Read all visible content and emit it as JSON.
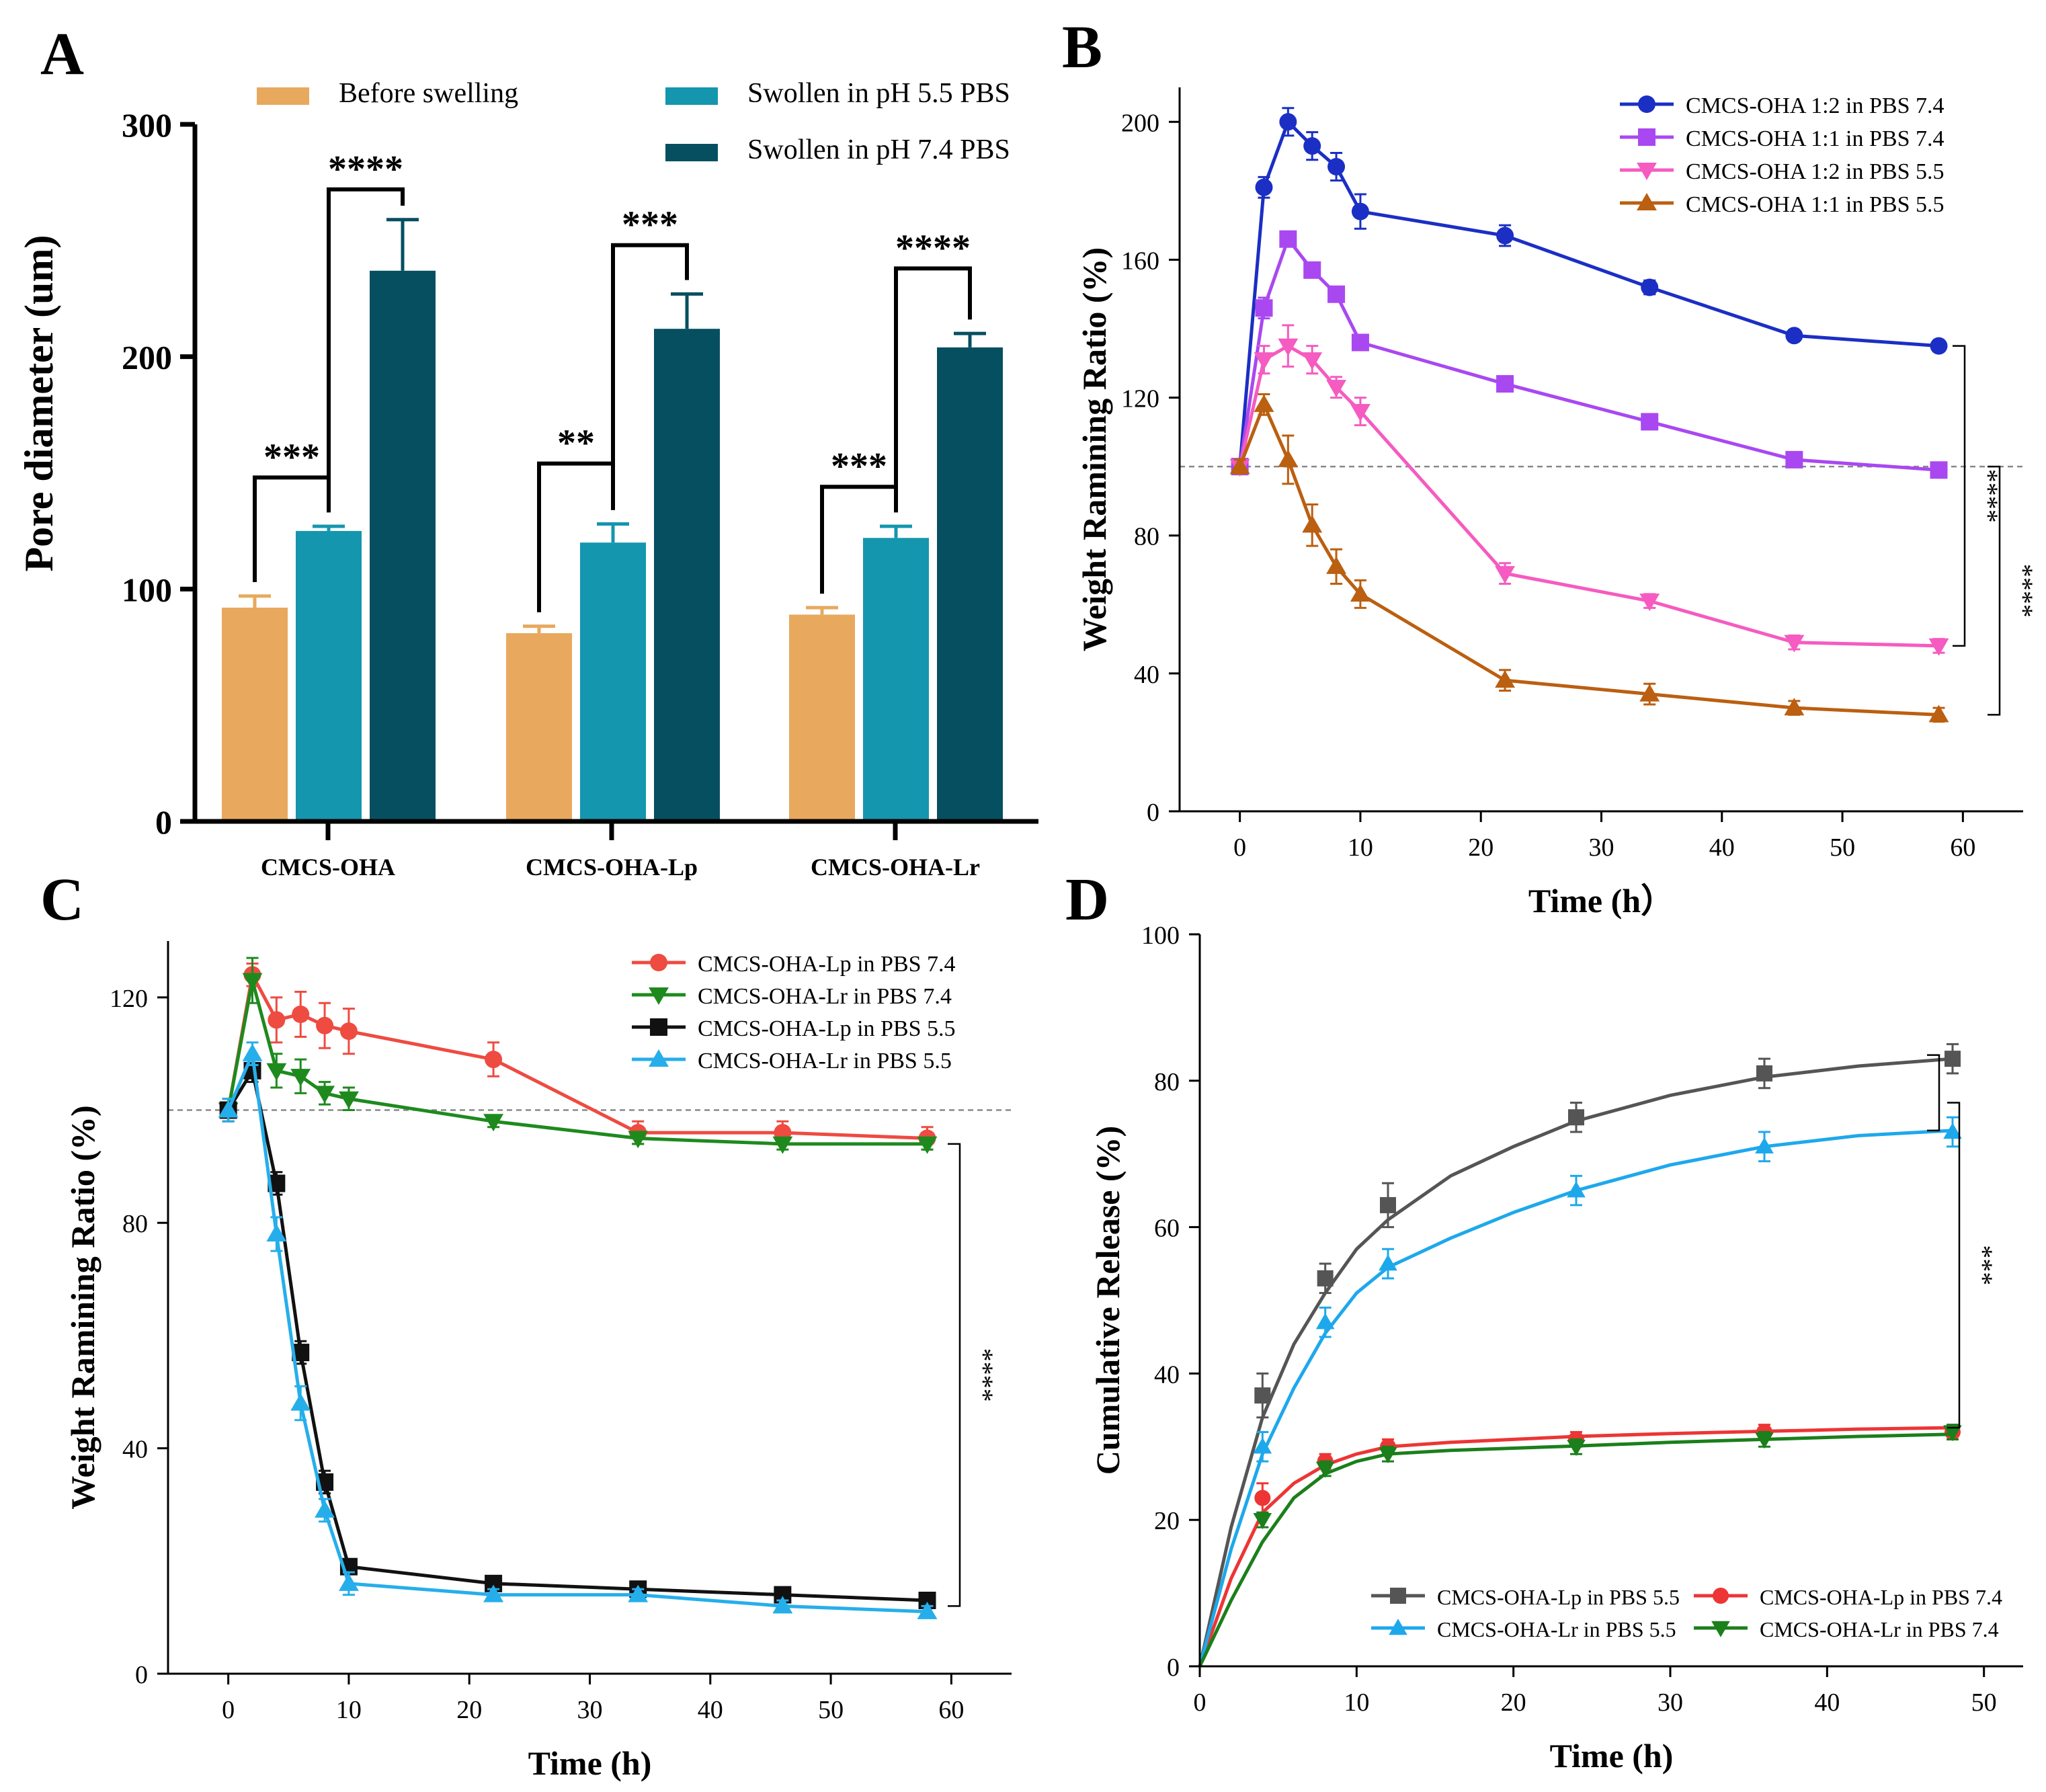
{
  "figure": {
    "panel_letters": [
      "A",
      "B",
      "C",
      "D"
    ]
  },
  "colors": {
    "before": "#E8A95E",
    "ph55": "#1496AE",
    "ph74": "#064F60",
    "b_s1": "#1B2FC4",
    "b_s2": "#A948F0",
    "b_s3": "#F55BC0",
    "b_s4": "#BB5F11",
    "c_s1": "#EE4B41",
    "c_s2": "#1E8A1E",
    "c_s3": "#111111",
    "c_s4": "#26AEEB",
    "d_s1": "#555555",
    "d_s2": "#ED3535",
    "d_s3": "#1EA8EC",
    "d_s4": "#1B7F1B"
  },
  "chart_data": [
    {
      "panel": "A",
      "type": "bar",
      "title": "",
      "xlabel": "",
      "ylabel": "Pore diameter (um)",
      "ylim": [
        0,
        300
      ],
      "yticks": [
        "0",
        "100",
        "200",
        "300"
      ],
      "categories": [
        "CMCS-OHA",
        "CMCS-OHA-Lp",
        "CMCS-OHA-Lr"
      ],
      "series": [
        {
          "name": "Before swelling",
          "values": [
            92,
            81,
            89
          ],
          "errors": [
            5,
            3,
            3
          ]
        },
        {
          "name": "Swollen in pH 5.5 PBS",
          "values": [
            125,
            120,
            122
          ],
          "errors": [
            2,
            8,
            5
          ]
        },
        {
          "name": "Swollen in pH 7.4 PBS",
          "values": [
            237,
            212,
            204
          ],
          "errors": [
            22,
            15,
            6
          ]
        }
      ],
      "significance": [
        {
          "group": 0,
          "from": 0,
          "to": 1,
          "label": "***",
          "level": 148
        },
        {
          "group": 0,
          "from": 1,
          "to": 2,
          "label": "****",
          "level": 272
        },
        {
          "group": 1,
          "from": 0,
          "to": 1,
          "label": "**",
          "level": 154
        },
        {
          "group": 1,
          "from": 1,
          "to": 2,
          "label": "***",
          "level": 248
        },
        {
          "group": 2,
          "from": 0,
          "to": 1,
          "label": "***",
          "level": 144
        },
        {
          "group": 2,
          "from": 1,
          "to": 2,
          "label": "****",
          "level": 238
        }
      ]
    },
    {
      "panel": "B",
      "type": "line",
      "title": "",
      "xlabel": "Time (h）",
      "ylabel": "Weight Ramining Ratio (%)",
      "xlim": [
        -5,
        65
      ],
      "ylim": [
        0,
        210
      ],
      "xticks": [
        "0",
        "10",
        "20",
        "30",
        "40",
        "50",
        "60"
      ],
      "yticks": [
        "0",
        "40",
        "80",
        "120",
        "160",
        "200"
      ],
      "reference_line": 100,
      "x": [
        0,
        2,
        4,
        6,
        8,
        10,
        22,
        34,
        46,
        58
      ],
      "series": [
        {
          "name": "CMCS-OHA 1:2 in PBS 7.4",
          "marker": "circle",
          "values": [
            100,
            181,
            200,
            193,
            187,
            174,
            167,
            152,
            138,
            135
          ],
          "errors": [
            2,
            3,
            4,
            4,
            4,
            5,
            3,
            2,
            1,
            1
          ]
        },
        {
          "name": "CMCS-OHA 1:1 in PBS 7.4",
          "marker": "square",
          "values": [
            100,
            146,
            166,
            157,
            150,
            136,
            124,
            113,
            102,
            99
          ],
          "errors": [
            2,
            3,
            2,
            2,
            2,
            2,
            2,
            2,
            2,
            2
          ]
        },
        {
          "name": "CMCS-OHA 1:2 in PBS 5.5",
          "marker": "triangle-down",
          "values": [
            100,
            131,
            135,
            131,
            123,
            116,
            69,
            61,
            49,
            48
          ],
          "errors": [
            2,
            4,
            6,
            4,
            3,
            4,
            3,
            2,
            2,
            2
          ]
        },
        {
          "name": "CMCS-OHA 1:1 in PBS 5.5",
          "marker": "triangle-up",
          "values": [
            100,
            118,
            102,
            83,
            71,
            63,
            38,
            34,
            30,
            28
          ],
          "errors": [
            2,
            3,
            7,
            6,
            5,
            4,
            3,
            3,
            2,
            2
          ]
        }
      ],
      "significance": [
        {
          "from": 0,
          "to": 2,
          "label": "****"
        },
        {
          "from": 2,
          "to": 3,
          "label": "****"
        }
      ]
    },
    {
      "panel": "C",
      "type": "line",
      "title": "",
      "xlabel": "Time (h)",
      "ylabel": "Weight Ramining Ratio (%)",
      "xlim": [
        -5,
        65
      ],
      "ylim": [
        0,
        130
      ],
      "xticks": [
        "0",
        "10",
        "20",
        "30",
        "40",
        "50",
        "60"
      ],
      "yticks": [
        "0",
        "40",
        "80",
        "120"
      ],
      "reference_line": 100,
      "x": [
        0,
        2,
        4,
        6,
        8,
        10,
        22,
        34,
        46,
        58
      ],
      "series": [
        {
          "name": "CMCS-OHA-Lp in PBS 7.4",
          "marker": "circle",
          "values": [
            100,
            124,
            116,
            117,
            115,
            114,
            109,
            96,
            96,
            95
          ],
          "errors": [
            2,
            2,
            4,
            4,
            4,
            4,
            3,
            2,
            2,
            2
          ]
        },
        {
          "name": "CMCS-OHA-Lr in PBS 7.4",
          "marker": "triangle-down",
          "values": [
            100,
            123,
            107,
            106,
            103,
            102,
            98,
            95,
            94,
            94
          ],
          "errors": [
            2,
            4,
            3,
            3,
            2,
            2,
            1,
            1,
            1,
            1
          ]
        },
        {
          "name": "CMCS-OHA-Lp in PBS 5.5",
          "marker": "square",
          "values": [
            100,
            107,
            87,
            57,
            34,
            19,
            16,
            15,
            14,
            13
          ],
          "errors": [
            1,
            2,
            2,
            2,
            2,
            1,
            1,
            1,
            1,
            1
          ]
        },
        {
          "name": "CMCS-OHA-Lr in PBS 5.5",
          "marker": "triangle-up",
          "values": [
            100,
            110,
            78,
            48,
            29,
            16,
            14,
            14,
            12,
            11
          ],
          "errors": [
            2,
            2,
            3,
            3,
            2,
            2,
            1,
            1,
            1,
            1
          ]
        }
      ],
      "significance": [
        {
          "from": 0,
          "to": 3,
          "label": "****"
        }
      ]
    },
    {
      "panel": "D",
      "type": "line",
      "title": "",
      "xlabel": "Time (h)",
      "ylabel": "Cumulative Release (%)",
      "xlim": [
        0,
        52.5
      ],
      "ylim": [
        0,
        100
      ],
      "xticks": [
        "0",
        "10",
        "20",
        "30",
        "40",
        "50"
      ],
      "yticks": [
        "0",
        "20",
        "40",
        "60",
        "80",
        "100"
      ],
      "x": [
        4,
        8,
        12,
        24,
        36,
        48
      ],
      "series": [
        {
          "name": "CMCS-OHA-Lp in PBS 5.5",
          "marker": "square",
          "values": [
            37,
            53,
            63,
            75,
            81,
            83
          ],
          "errors": [
            3,
            2,
            3,
            2,
            2,
            2
          ],
          "curve": [
            [
              0,
              0
            ],
            [
              2,
              19
            ],
            [
              4,
              34
            ],
            [
              6,
              44
            ],
            [
              8,
              51
            ],
            [
              10,
              57
            ],
            [
              12,
              61
            ],
            [
              16,
              67
            ],
            [
              20,
              71
            ],
            [
              24,
              74.5
            ],
            [
              30,
              78
            ],
            [
              36,
              80.5
            ],
            [
              42,
              82
            ],
            [
              48,
              83
            ]
          ]
        },
        {
          "name": "CMCS-OHA-Lp in PBS 7.4",
          "marker": "circle",
          "values": [
            23,
            28,
            30,
            31,
            32,
            32
          ],
          "errors": [
            2,
            1,
            1,
            1,
            1,
            1
          ],
          "curve": [
            [
              0,
              0
            ],
            [
              2,
              12
            ],
            [
              4,
              21
            ],
            [
              6,
              25
            ],
            [
              8,
              27.5
            ],
            [
              10,
              29
            ],
            [
              12,
              30
            ],
            [
              16,
              30.6
            ],
            [
              20,
              31
            ],
            [
              24,
              31.4
            ],
            [
              30,
              31.8
            ],
            [
              36,
              32.1
            ],
            [
              42,
              32.4
            ],
            [
              48,
              32.6
            ]
          ]
        },
        {
          "name": "CMCS-OHA-Lr  in PBS 5.5",
          "marker": "triangle-up",
          "values": [
            30,
            47,
            55,
            65,
            71,
            73
          ],
          "errors": [
            2,
            2,
            2,
            2,
            2,
            2
          ],
          "curve": [
            [
              0,
              0
            ],
            [
              2,
              16
            ],
            [
              4,
              29
            ],
            [
              6,
              38
            ],
            [
              8,
              45.5
            ],
            [
              10,
              51
            ],
            [
              12,
              54.5
            ],
            [
              16,
              58.5
            ],
            [
              20,
              62
            ],
            [
              24,
              65
            ],
            [
              30,
              68.5
            ],
            [
              36,
              71
            ],
            [
              42,
              72.5
            ],
            [
              48,
              73.2
            ]
          ]
        },
        {
          "name": "CMCS-OHA-Lr  in PBS 7.4",
          "marker": "triangle-down",
          "values": [
            20,
            27,
            29,
            30,
            31,
            32
          ],
          "errors": [
            1,
            1,
            1,
            1,
            1,
            1
          ],
          "curve": [
            [
              0,
              0
            ],
            [
              2,
              9
            ],
            [
              4,
              17
            ],
            [
              6,
              23
            ],
            [
              8,
              26.3
            ],
            [
              10,
              28
            ],
            [
              12,
              29
            ],
            [
              16,
              29.5
            ],
            [
              20,
              29.8
            ],
            [
              24,
              30.1
            ],
            [
              30,
              30.6
            ],
            [
              36,
              31
            ],
            [
              42,
              31.4
            ],
            [
              48,
              31.7
            ]
          ]
        }
      ],
      "significance": [
        {
          "from": 0,
          "to": 2,
          "label": ""
        },
        {
          "from": 2,
          "to": 1,
          "label": "***"
        }
      ]
    }
  ]
}
